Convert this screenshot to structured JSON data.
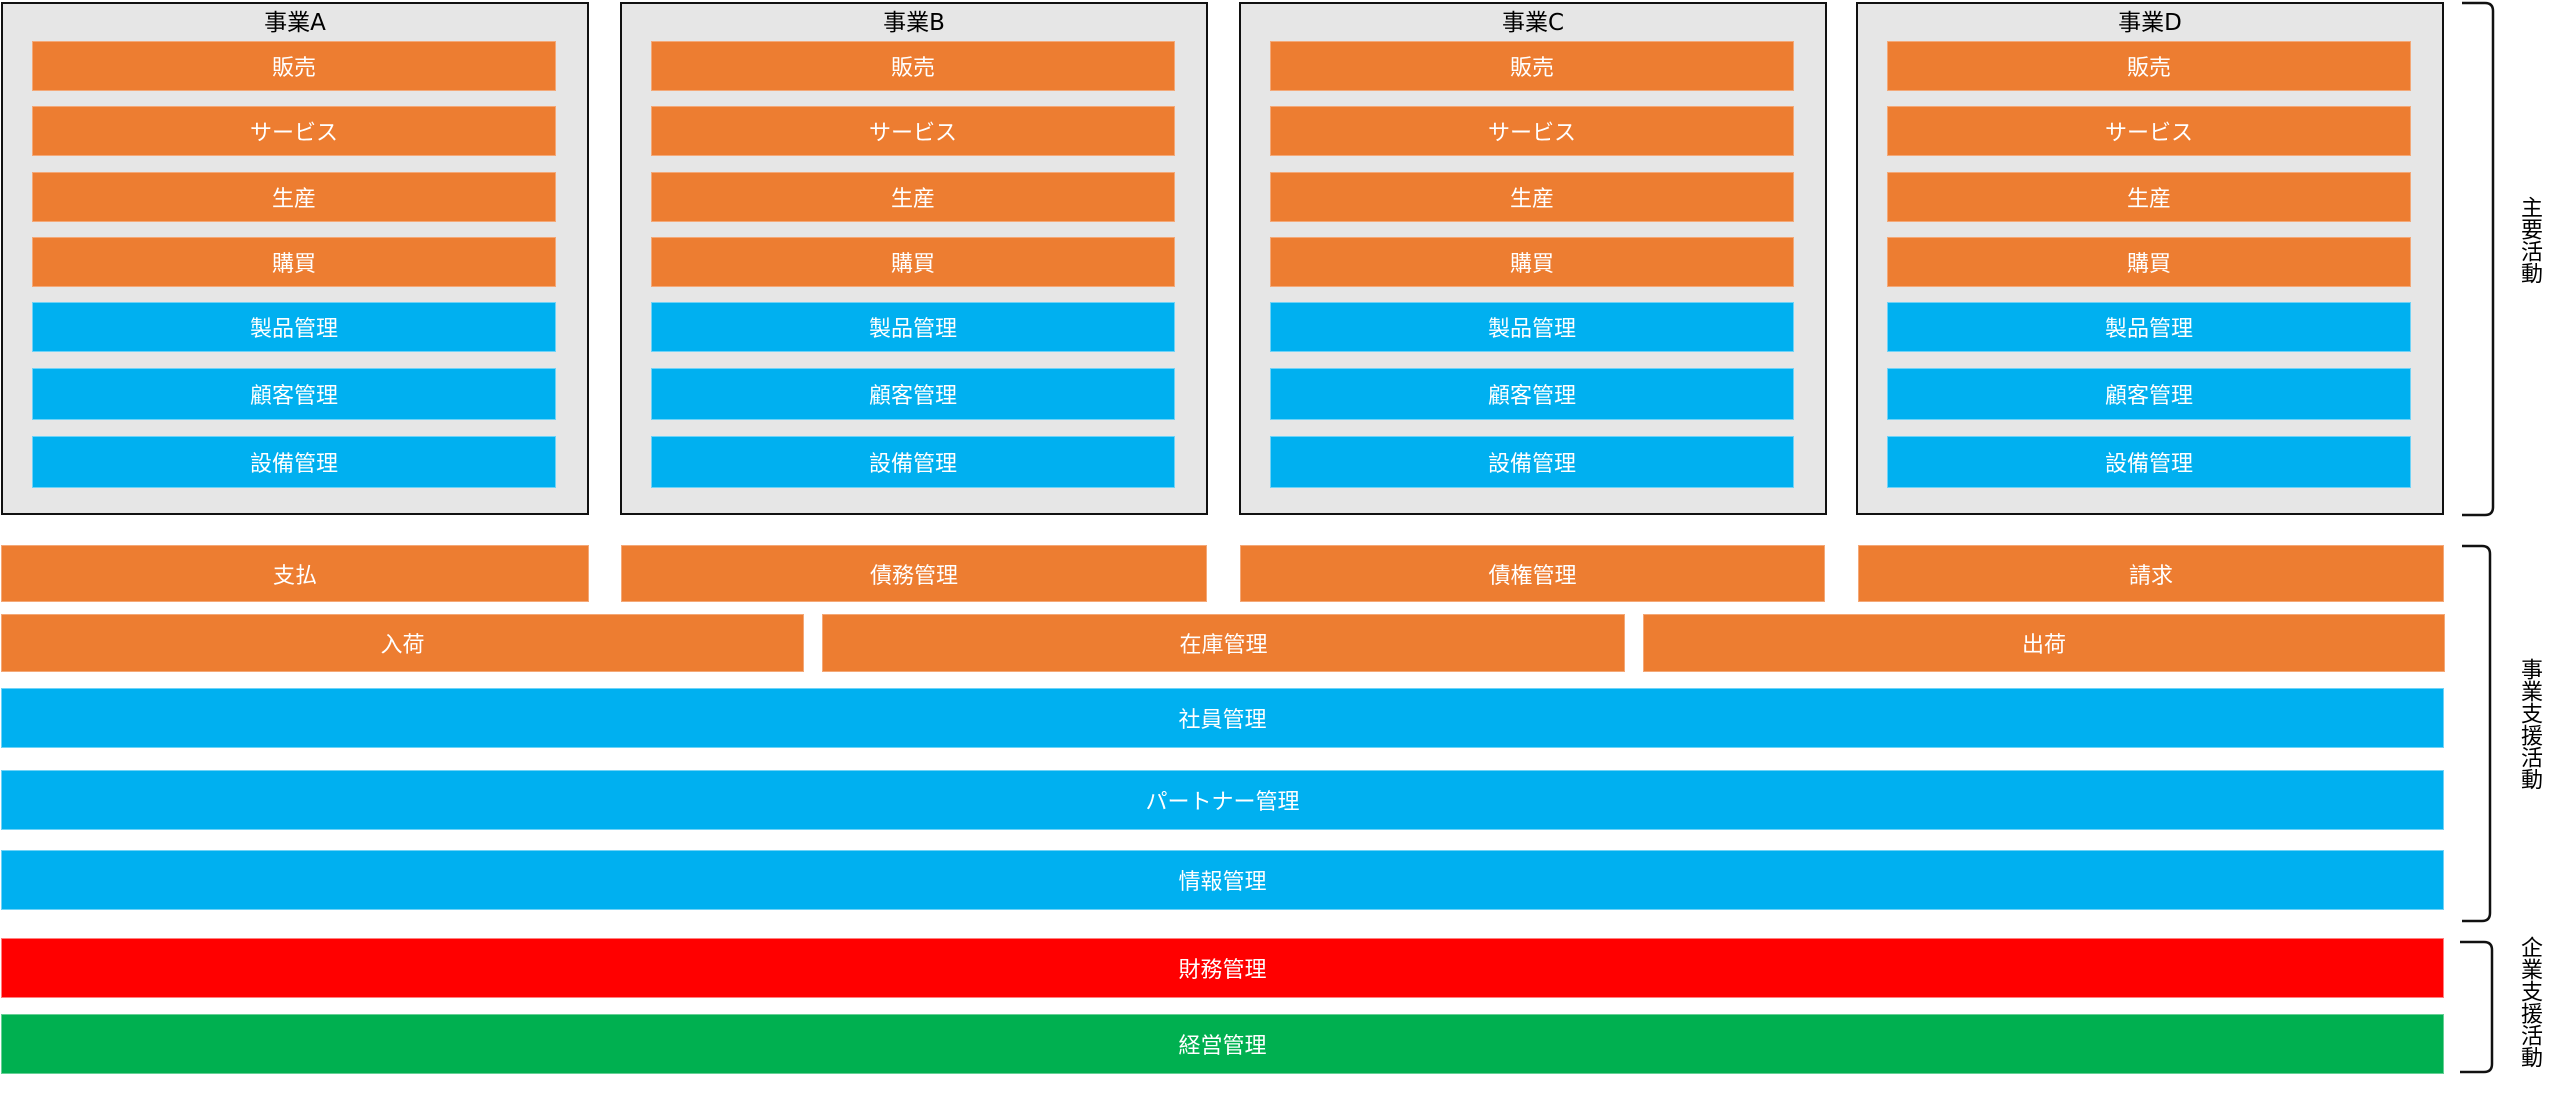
{
  "colors": {
    "primary_orange": "#ED7D31",
    "management_blue": "#00B0F0",
    "finance_red": "#FF0000",
    "executive_green": "#00B050",
    "box_gray": "#E6E6E6"
  },
  "businesses": [
    {
      "title": "事業A",
      "items": [
        "販売",
        "サービス",
        "生産",
        "購買",
        "製品管理",
        "顧客管理",
        "設備管理"
      ]
    },
    {
      "title": "事業B",
      "items": [
        "販売",
        "サービス",
        "生産",
        "購買",
        "製品管理",
        "顧客管理",
        "設備管理"
      ]
    },
    {
      "title": "事業C",
      "items": [
        "販売",
        "サービス",
        "生産",
        "購買",
        "製品管理",
        "顧客管理",
        "設備管理"
      ]
    },
    {
      "title": "事業D",
      "items": [
        "販売",
        "サービス",
        "生産",
        "購買",
        "製品管理",
        "顧客管理",
        "設備管理"
      ]
    }
  ],
  "item_colors": [
    "orange",
    "orange",
    "orange",
    "orange",
    "blue",
    "blue",
    "blue"
  ],
  "support": {
    "row1": [
      "支払",
      "債務管理",
      "債権管理",
      "請求"
    ],
    "row2": [
      "入荷",
      "在庫管理",
      "出荷"
    ],
    "wide": [
      "社員管理",
      "パートナー管理",
      "情報管理"
    ]
  },
  "corporate": [
    "財務管理",
    "経営管理"
  ],
  "labels": {
    "primary": "主要活動",
    "business_support": "事業支援活動",
    "corporate_support": "企業支援活動"
  }
}
